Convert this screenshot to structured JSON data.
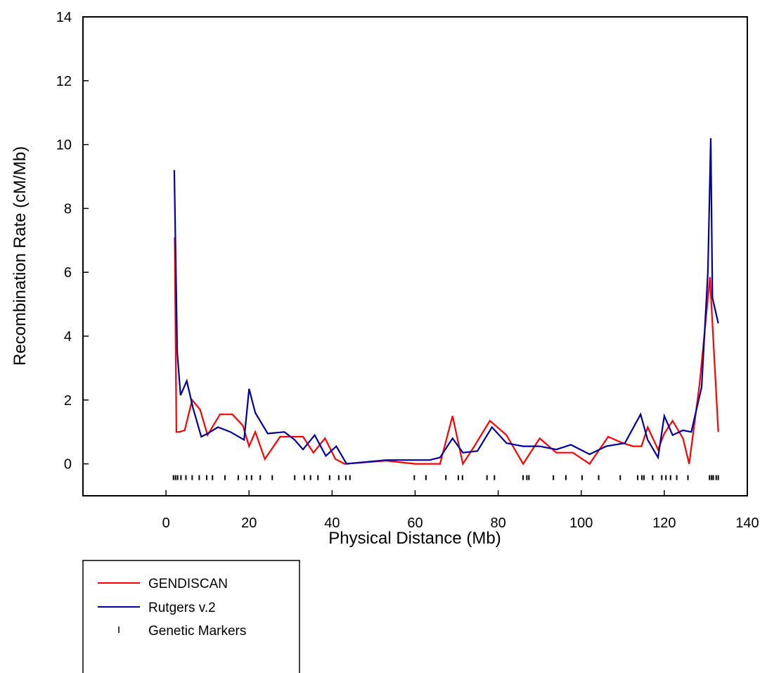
{
  "chart_data": {
    "type": "line",
    "xlabel": "Physical Distance (Mb)",
    "ylabel": "Recombination Rate (cM/Mb)",
    "xlim": [
      -20,
      140
    ],
    "ylim": [
      -1,
      14
    ],
    "x_ticks": [
      0,
      20,
      40,
      60,
      80,
      100,
      120,
      140
    ],
    "y_ticks": [
      0,
      2,
      4,
      6,
      8,
      10,
      12,
      14
    ],
    "grid": false,
    "legend_position": "bottom-left",
    "colors": {
      "GENDISCAN": "#ff0000",
      "Rutgers v.2": "#0000a0",
      "markers": "#000000"
    },
    "series": [
      {
        "name": "GENDISCAN",
        "color": "#ff0000",
        "x": [
          2.1,
          2.5,
          3.2,
          4.5,
          6.3,
          8.2,
          10.0,
          13.0,
          16.0,
          18.5,
          20.0,
          21.5,
          23.8,
          27.5,
          30.5,
          33.0,
          35.5,
          38.3,
          40.8,
          43.0,
          53.0,
          60.0,
          66.0,
          69.0,
          71.5,
          74.0,
          78.0,
          82.0,
          86.0,
          90.0,
          94.0,
          98.0,
          102.0,
          106.5,
          110.0,
          112.5,
          114.5,
          116.0,
          118.5,
          120.0,
          122.0,
          124.5,
          126.0,
          128.5,
          131.0,
          133.0
        ],
        "y": [
          7.1,
          1.0,
          1.0,
          1.05,
          2.0,
          1.7,
          0.9,
          1.55,
          1.55,
          1.2,
          0.55,
          1.0,
          0.15,
          0.85,
          0.85,
          0.85,
          0.35,
          0.8,
          0.15,
          0.0,
          0.1,
          0.0,
          0.0,
          1.5,
          0.0,
          0.5,
          1.35,
          0.9,
          0.0,
          0.8,
          0.35,
          0.35,
          0.0,
          0.85,
          0.65,
          0.55,
          0.55,
          1.15,
          0.45,
          0.95,
          1.35,
          0.8,
          0.0,
          2.5,
          5.85,
          1.0
        ]
      },
      {
        "name": "Rutgers v.2",
        "color": "#0000a0",
        "x": [
          2.0,
          2.7,
          3.5,
          5.0,
          6.5,
          8.5,
          10.0,
          12.5,
          15.5,
          18.8,
          20.0,
          21.5,
          24.5,
          28.5,
          31.0,
          33.0,
          35.8,
          38.5,
          41.0,
          43.5,
          53.0,
          60.0,
          63.5,
          66.0,
          69.0,
          71.5,
          75.0,
          78.5,
          82.0,
          86.0,
          90.0,
          94.0,
          97.5,
          102.0,
          106.0,
          110.5,
          114.3,
          116.0,
          118.5,
          120.0,
          122.0,
          124.5,
          126.5,
          129.0,
          130.5,
          131.2,
          131.6,
          133.0
        ],
        "y": [
          9.2,
          3.5,
          2.15,
          2.6,
          1.75,
          0.85,
          0.95,
          1.15,
          1.0,
          0.75,
          2.35,
          1.6,
          0.95,
          1.0,
          0.75,
          0.45,
          0.9,
          0.25,
          0.55,
          0.0,
          0.12,
          0.12,
          0.12,
          0.2,
          0.8,
          0.35,
          0.4,
          1.15,
          0.65,
          0.55,
          0.55,
          0.45,
          0.6,
          0.3,
          0.55,
          0.65,
          1.55,
          0.75,
          0.2,
          1.5,
          0.9,
          1.05,
          1.0,
          2.4,
          6.0,
          10.2,
          5.2,
          4.4
        ]
      }
    ],
    "markers": {
      "name": "Genetic Markers",
      "y": -0.42,
      "x": [
        1.8,
        2.3,
        2.8,
        3.6,
        4.8,
        6.3,
        8.0,
        9.8,
        11.2,
        14.2,
        17.4,
        19.4,
        20.6,
        22.7,
        25.6,
        31.0,
        33.3,
        34.8,
        36.6,
        39.4,
        41.6,
        43.3,
        44.3,
        59.8,
        62.6,
        67.4,
        70.4,
        71.4,
        77.3,
        79.1,
        86.0,
        86.9,
        87.4,
        93.3,
        96.3,
        100.2,
        104.2,
        109.4,
        113.6,
        114.6,
        115.1,
        117.2,
        119.4,
        120.4,
        121.5,
        123.0,
        125.7,
        130.9,
        131.4,
        131.8,
        132.5,
        133.0
      ]
    }
  },
  "legend": {
    "items": [
      {
        "label": "GENDISCAN",
        "kind": "line",
        "color": "#ff0000"
      },
      {
        "label": "Rutgers v.2",
        "kind": "line",
        "color": "#0000a0"
      },
      {
        "label": "Genetic Markers",
        "kind": "tick",
        "color": "#000000"
      }
    ]
  }
}
